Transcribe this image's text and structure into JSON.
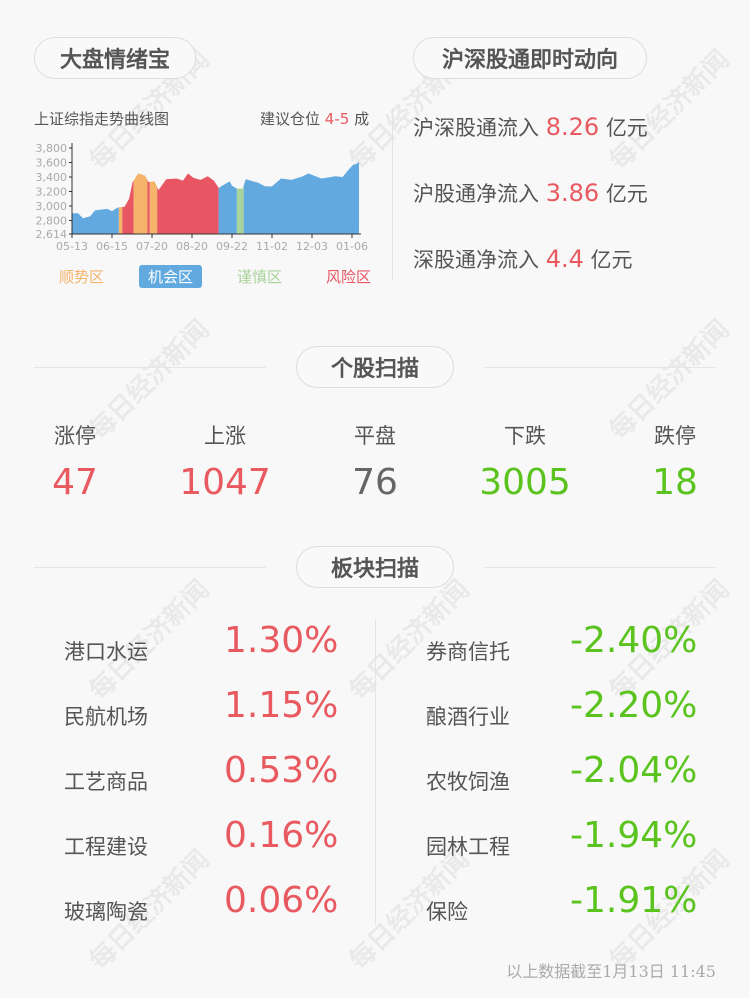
{
  "watermark": "每日经济新闻",
  "sentiment": {
    "title": "大盘情绪宝",
    "chart_title": "上证综指走势曲线图",
    "advice_prefix": "建议仓位",
    "advice_value": "4-5",
    "advice_suffix": "成",
    "legend": [
      {
        "label": "顺势区",
        "color": "#f5b46a"
      },
      {
        "label": "机会区",
        "color": "#62a9e0"
      },
      {
        "label": "谨慎区",
        "color": "#a8d39a"
      },
      {
        "label": "风险区",
        "color": "#e85563"
      }
    ]
  },
  "chart_data": {
    "type": "area",
    "title": "上证综指走势曲线图",
    "ylim": [
      2614,
      3800
    ],
    "yticks": [
      "3,800",
      "3,600",
      "3,400",
      "3,200",
      "3,000",
      "2,800",
      "2,614"
    ],
    "xticks": [
      "05-13",
      "06-15",
      "07-20",
      "08-20",
      "09-22",
      "11-02",
      "12-03",
      "01-06"
    ],
    "points": [
      [
        "05-13",
        2900
      ],
      [
        "05-18",
        2900
      ],
      [
        "05-22",
        2830
      ],
      [
        "05-28",
        2860
      ],
      [
        "06-01",
        2940
      ],
      [
        "06-11",
        2960
      ],
      [
        "06-15",
        2930
      ],
      [
        "06-20",
        2980
      ],
      [
        "06-26",
        2990
      ],
      [
        "06-30",
        3100
      ],
      [
        "07-03",
        3330
      ],
      [
        "07-08",
        3450
      ],
      [
        "07-14",
        3420
      ],
      [
        "07-17",
        3330
      ],
      [
        "07-22",
        3340
      ],
      [
        "07-25",
        3220
      ],
      [
        "07-31",
        3370
      ],
      [
        "08-08",
        3380
      ],
      [
        "08-13",
        3350
      ],
      [
        "08-17",
        3450
      ],
      [
        "08-21",
        3390
      ],
      [
        "08-27",
        3360
      ],
      [
        "09-02",
        3410
      ],
      [
        "09-07",
        3350
      ],
      [
        "09-11",
        3250
      ],
      [
        "09-16",
        3300
      ],
      [
        "09-20",
        3340
      ],
      [
        "09-22",
        3280
      ],
      [
        "09-27",
        3240
      ],
      [
        "10-03",
        3240
      ],
      [
        "10-06",
        3370
      ],
      [
        "10-19",
        3320
      ],
      [
        "10-26",
        3270
      ],
      [
        "11-02",
        3270
      ],
      [
        "11-09",
        3380
      ],
      [
        "11-17",
        3360
      ],
      [
        "11-26",
        3410
      ],
      [
        "11-30",
        3450
      ],
      [
        "12-11",
        3380
      ],
      [
        "12-23",
        3410
      ],
      [
        "12-29",
        3400
      ],
      [
        "01-03",
        3500
      ],
      [
        "01-07",
        3570
      ],
      [
        "01-10",
        3580
      ],
      [
        "01-12",
        3610
      ]
    ],
    "zones": [
      [
        "05-13",
        "06-21",
        "机会区"
      ],
      [
        "06-21",
        "06-24",
        "顺势区"
      ],
      [
        "06-24",
        "07-04",
        "风险区"
      ],
      [
        "07-04",
        "07-16",
        "顺势区"
      ],
      [
        "07-16",
        "07-18",
        "风险区"
      ],
      [
        "07-18",
        "07-24",
        "顺势区"
      ],
      [
        "07-24",
        "09-11",
        "风险区"
      ],
      [
        "09-11",
        "09-27",
        "机会区"
      ],
      [
        "09-27",
        "10-04",
        "谨慎区"
      ],
      [
        "10-04",
        "01-12",
        "机会区"
      ]
    ]
  },
  "connect": {
    "title": "沪深股通即时动向",
    "rows": [
      {
        "label": "沪深股通流入",
        "value": "8.26",
        "unit": "亿元"
      },
      {
        "label": "沪股通净流入",
        "value": "3.86",
        "unit": "亿元"
      },
      {
        "label": "深股通净流入",
        "value": "4.4",
        "unit": "亿元"
      }
    ]
  },
  "stocks": {
    "title": "个股扫描",
    "items": [
      {
        "label": "涨停",
        "value": "47",
        "color": "red"
      },
      {
        "label": "上涨",
        "value": "1047",
        "color": "red"
      },
      {
        "label": "平盘",
        "value": "76",
        "color": "gray"
      },
      {
        "label": "下跌",
        "value": "3005",
        "color": "green"
      },
      {
        "label": "跌停",
        "value": "18",
        "color": "green"
      }
    ]
  },
  "sectors": {
    "title": "板块扫描",
    "gainers": [
      {
        "name": "港口水运",
        "pct": "1.30%"
      },
      {
        "name": "民航机场",
        "pct": "1.15%"
      },
      {
        "name": "工艺商品",
        "pct": "0.53%"
      },
      {
        "name": "工程建设",
        "pct": "0.16%"
      },
      {
        "name": "玻璃陶瓷",
        "pct": "0.06%"
      }
    ],
    "losers": [
      {
        "name": "券商信托",
        "pct": "-2.40%"
      },
      {
        "name": "酿酒行业",
        "pct": "-2.20%"
      },
      {
        "name": "农牧饲渔",
        "pct": "-2.04%"
      },
      {
        "name": "园林工程",
        "pct": "-1.94%"
      },
      {
        "name": "保险",
        "pct": "-1.91%"
      }
    ]
  },
  "footer": "以上数据截至1月13日 11:45"
}
